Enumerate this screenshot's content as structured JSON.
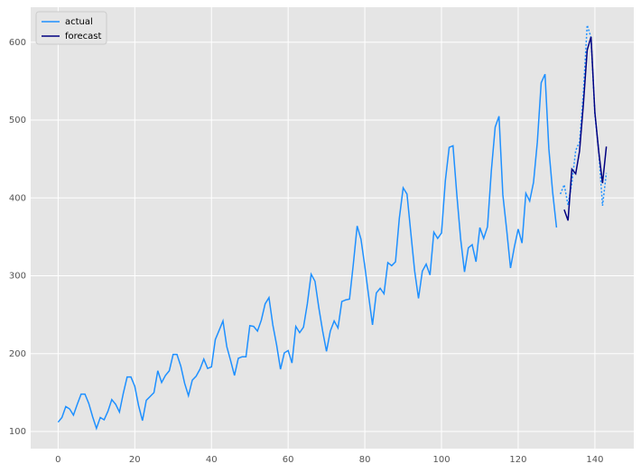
{
  "chart_data": {
    "type": "line",
    "x": [
      0,
      1,
      2,
      3,
      4,
      5,
      6,
      7,
      8,
      9,
      10,
      11,
      12,
      13,
      14,
      15,
      16,
      17,
      18,
      19,
      20,
      21,
      22,
      23,
      24,
      25,
      26,
      27,
      28,
      29,
      30,
      31,
      32,
      33,
      34,
      35,
      36,
      37,
      38,
      39,
      40,
      41,
      42,
      43,
      44,
      45,
      46,
      47,
      48,
      49,
      50,
      51,
      52,
      53,
      54,
      55,
      56,
      57,
      58,
      59,
      60,
      61,
      62,
      63,
      64,
      65,
      66,
      67,
      68,
      69,
      70,
      71,
      72,
      73,
      74,
      75,
      76,
      77,
      78,
      79,
      80,
      81,
      82,
      83,
      84,
      85,
      86,
      87,
      88,
      89,
      90,
      91,
      92,
      93,
      94,
      95,
      96,
      97,
      98,
      99,
      100,
      101,
      102,
      103,
      104,
      105,
      106,
      107,
      108,
      109,
      110,
      111,
      112,
      113,
      114,
      115,
      116,
      117,
      118,
      119,
      120,
      121,
      122,
      123,
      124,
      125,
      126,
      127,
      128,
      129,
      130,
      131,
      132,
      133,
      134,
      135,
      136,
      137,
      138,
      139,
      140,
      141,
      142,
      143
    ],
    "series": [
      {
        "name": "actual",
        "color": "#1e90ff",
        "dashed_from": 131,
        "values": [
          112,
          118,
          132,
          129,
          121,
          135,
          148,
          148,
          136,
          119,
          104,
          118,
          115,
          126,
          141,
          135,
          125,
          149,
          170,
          170,
          158,
          133,
          114,
          140,
          145,
          150,
          178,
          163,
          172,
          178,
          199,
          199,
          184,
          162,
          146,
          166,
          171,
          180,
          193,
          181,
          183,
          218,
          230,
          242,
          209,
          191,
          172,
          194,
          196,
          196,
          236,
          235,
          229,
          243,
          264,
          272,
          237,
          211,
          180,
          201,
          204,
          188,
          235,
          227,
          234,
          264,
          302,
          293,
          259,
          229,
          203,
          229,
          242,
          233,
          267,
          269,
          270,
          315,
          364,
          347,
          312,
          274,
          237,
          278,
          284,
          277,
          317,
          313,
          318,
          374,
          413,
          405,
          355,
          306,
          271,
          306,
          315,
          301,
          356,
          348,
          355,
          422,
          465,
          467,
          404,
          347,
          305,
          336,
          340,
          318,
          362,
          348,
          363,
          435,
          491,
          505,
          404,
          359,
          310,
          337,
          360,
          342,
          406,
          396,
          420,
          472,
          548,
          559,
          463,
          407,
          362,
          405,
          417,
          391,
          419,
          461,
          472,
          535,
          622,
          606,
          508,
          461,
          390,
          432
        ]
      },
      {
        "name": "forecast",
        "color": "#000080",
        "values": [
          null,
          null,
          null,
          null,
          null,
          null,
          null,
          null,
          null,
          null,
          null,
          null,
          null,
          null,
          null,
          null,
          null,
          null,
          null,
          null,
          null,
          null,
          null,
          null,
          null,
          null,
          null,
          null,
          null,
          null,
          null,
          null,
          null,
          null,
          null,
          null,
          null,
          null,
          null,
          null,
          null,
          null,
          null,
          null,
          null,
          null,
          null,
          null,
          null,
          null,
          null,
          null,
          null,
          null,
          null,
          null,
          null,
          null,
          null,
          null,
          null,
          null,
          null,
          null,
          null,
          null,
          null,
          null,
          null,
          null,
          null,
          null,
          null,
          null,
          null,
          null,
          null,
          null,
          null,
          null,
          null,
          null,
          null,
          null,
          null,
          null,
          null,
          null,
          null,
          null,
          null,
          null,
          null,
          null,
          null,
          null,
          null,
          null,
          null,
          null,
          null,
          null,
          null,
          null,
          null,
          null,
          null,
          null,
          null,
          null,
          null,
          null,
          null,
          null,
          null,
          null,
          null,
          null,
          null,
          null,
          null,
          null,
          null,
          null,
          null,
          null,
          null,
          null,
          null,
          null,
          null,
          null,
          385,
          371,
          437,
          431,
          460,
          520,
          590,
          607,
          510,
          460,
          419,
          466
        ]
      }
    ],
    "xlim": [
      -7.15,
      150.15
    ],
    "xticks": [
      0,
      20,
      40,
      60,
      80,
      100,
      120,
      140
    ],
    "ylim": [
      78,
      645
    ],
    "yticks": [
      100,
      200,
      300,
      400,
      500,
      600
    ],
    "grid": true,
    "legend": "upper-left"
  }
}
